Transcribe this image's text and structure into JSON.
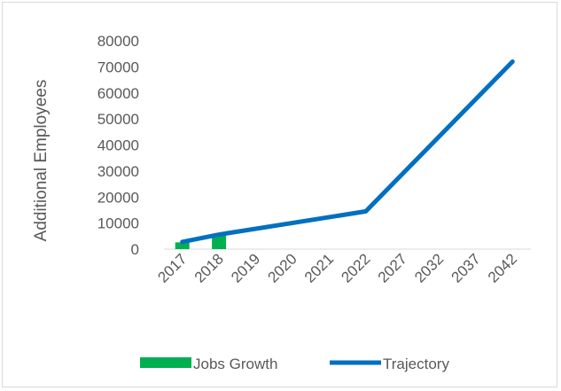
{
  "chart_data": {
    "type": "bar+line",
    "categories": [
      "2017",
      "2018",
      "2019",
      "2020",
      "2021",
      "2022",
      "2027",
      "2032",
      "2037",
      "2042"
    ],
    "ylabel": "Additional Employees",
    "ylim": [
      0,
      80000
    ],
    "yticks": [
      "0",
      "10000",
      "20000",
      "30000",
      "40000",
      "50000",
      "60000",
      "70000",
      "80000"
    ],
    "grid": false,
    "legend_position": "bottom",
    "series": [
      {
        "name": "Jobs Growth",
        "kind": "bar",
        "color": "#00b050",
        "values": [
          2600,
          5200,
          null,
          null,
          null,
          null,
          null,
          null,
          null,
          null
        ]
      },
      {
        "name": "Trajectory",
        "kind": "line",
        "color": "#0070c0",
        "values": [
          2800,
          5600,
          null,
          null,
          null,
          14500,
          null,
          null,
          null,
          72000
        ]
      }
    ]
  }
}
